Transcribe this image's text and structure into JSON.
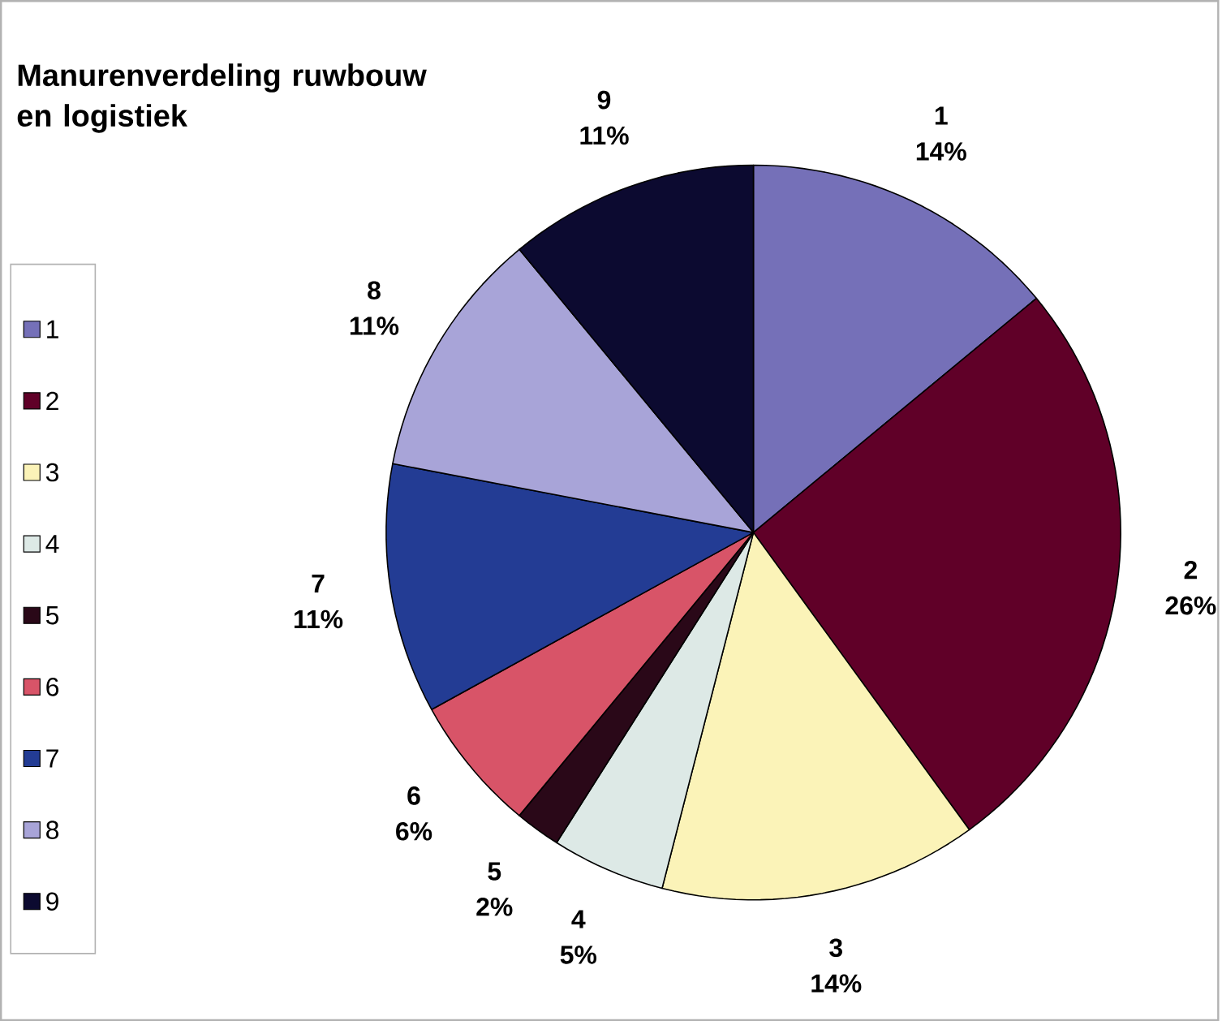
{
  "chart_data": {
    "type": "pie",
    "title": "Manurenverdeling ruwbouw en logistiek",
    "categories": [
      "1",
      "2",
      "3",
      "4",
      "5",
      "6",
      "7",
      "8",
      "9"
    ],
    "values": [
      14,
      26,
      14,
      5,
      2,
      6,
      11,
      11,
      11
    ],
    "value_labels": [
      "14%",
      "26%",
      "14%",
      "5%",
      "2%",
      "6%",
      "11%",
      "11%",
      "11%"
    ],
    "colors": [
      "#7570b8",
      "#600028",
      "#fbf3b8",
      "#dde9e6",
      "#2a0818",
      "#d85468",
      "#233c94",
      "#a8a4d8",
      "#0c0a30"
    ],
    "legend": "left"
  }
}
